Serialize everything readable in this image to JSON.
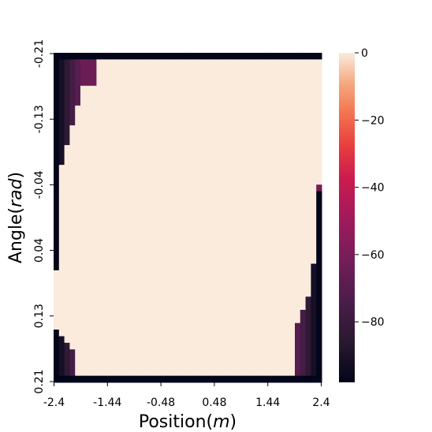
{
  "chart_data": {
    "type": "heatmap",
    "title": "",
    "xlabel_text": "Position(",
    "xlabel_unit": "m",
    "xlabel_close": ")",
    "ylabel_text": "Angle(",
    "ylabel_unit": "rad",
    "ylabel_close": ")",
    "x_tick_labels": [
      "-2.4",
      "-1.44",
      "-0.48",
      "0.48",
      "1.44",
      "2.4"
    ],
    "y_tick_labels": [
      "-0.21",
      "-0.13",
      "-0.04",
      "0.04",
      "0.13",
      "0.21"
    ],
    "x_range": [
      -2.4,
      2.4
    ],
    "y_range": [
      -0.21,
      0.21
    ],
    "grid_columns": 50,
    "grid_rows": 50,
    "colorbar": {
      "min": -98,
      "max": 0,
      "tick_values": [
        0,
        -20,
        -40,
        -60,
        -80
      ],
      "tick_labels": [
        "0",
        "−20",
        "−40",
        "−60",
        "−80"
      ],
      "colormap": "rocket"
    },
    "typical_cell_value": 0,
    "value_description": "Most cells are 0; cells along the left and right edges (largest |position|) and the top/bottom corners are strongly negative (about -50 to -98)."
  }
}
